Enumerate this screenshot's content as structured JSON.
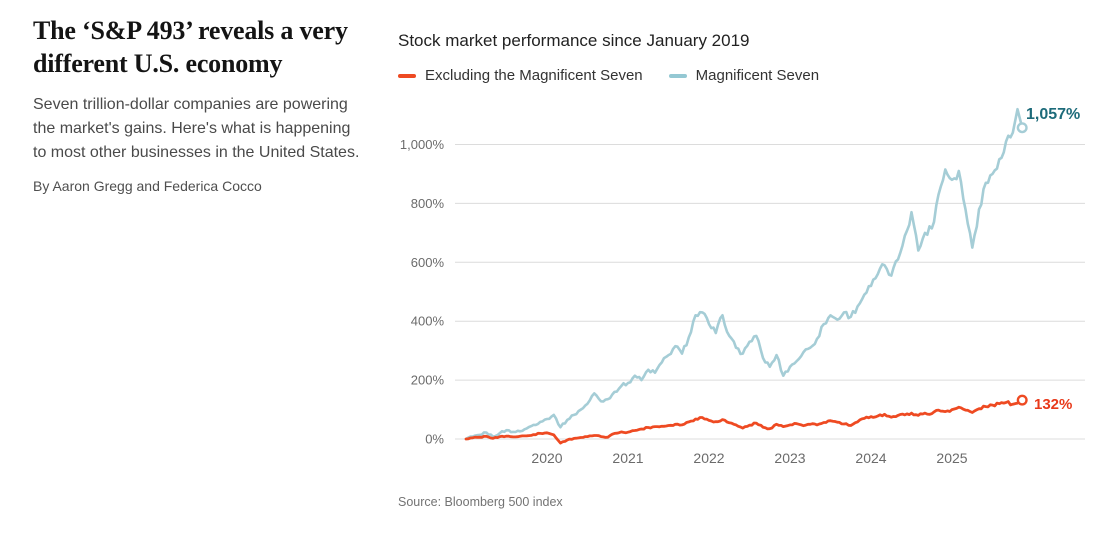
{
  "article": {
    "headline_lines": [
      "The ‘S&P 493’ reveals a very",
      "different U.S. economy"
    ],
    "subtitle_lines": [
      "Seven trillion-dollar companies are powering",
      "the market's gains. Here's what is happening",
      "to most other businesses in the United States."
    ],
    "byline": "By Aaron Gregg and Federica Cocco"
  },
  "chart": {
    "title": "Stock market performance since January 2019",
    "source": "Source: Bloomberg 500 index",
    "legend": [
      {
        "label": "Excluding the Magnificent Seven",
        "color": "#ee4a22"
      },
      {
        "label": "Magnificent Seven",
        "color": "#94c8d3"
      }
    ],
    "series_end_labels": {
      "excluding": "132%",
      "mag7": "1,057%"
    },
    "end_label_colors": {
      "excluding": "#e8391a",
      "mag7": "#1d6b7a"
    }
  },
  "chart_data": {
    "type": "line",
    "title": "Stock market performance since January 2019",
    "x_unit": "months since January 2019",
    "x_tick_years": [
      2020,
      2021,
      2022,
      2023,
      2024,
      2025
    ],
    "y_tick_values": [
      0,
      200,
      400,
      600,
      800,
      1000
    ],
    "y_tick_labels": [
      "0%",
      "200%",
      "400%",
      "600%",
      "800%",
      "1,000%"
    ],
    "ylim": [
      -40,
      1180
    ],
    "grid": "horizontal",
    "legend_position": "top",
    "series": [
      {
        "name": "Magnificent Seven",
        "color": "#a5cdd6",
        "end_value_pct": 1057,
        "end_label": "1,057%",
        "points": [
          [
            0,
            0
          ],
          [
            1,
            8
          ],
          [
            2,
            14
          ],
          [
            3,
            22
          ],
          [
            4,
            8
          ],
          [
            5,
            20
          ],
          [
            6,
            30
          ],
          [
            7,
            24
          ],
          [
            8,
            26
          ],
          [
            9,
            36
          ],
          [
            10,
            48
          ],
          [
            11,
            58
          ],
          [
            12,
            68
          ],
          [
            13,
            82
          ],
          [
            14,
            40
          ],
          [
            15,
            65
          ],
          [
            16,
            82
          ],
          [
            17,
            100
          ],
          [
            18,
            120
          ],
          [
            19,
            155
          ],
          [
            20,
            128
          ],
          [
            21,
            135
          ],
          [
            22,
            160
          ],
          [
            23,
            180
          ],
          [
            24,
            190
          ],
          [
            25,
            215
          ],
          [
            26,
            200
          ],
          [
            27,
            235
          ],
          [
            28,
            225
          ],
          [
            29,
            260
          ],
          [
            30,
            285
          ],
          [
            31,
            315
          ],
          [
            32,
            290
          ],
          [
            33,
            345
          ],
          [
            34,
            420
          ],
          [
            35,
            430
          ],
          [
            36,
            390
          ],
          [
            37,
            360
          ],
          [
            38,
            420
          ],
          [
            39,
            350
          ],
          [
            40,
            310
          ],
          [
            41,
            290
          ],
          [
            42,
            330
          ],
          [
            43,
            350
          ],
          [
            44,
            275
          ],
          [
            45,
            245
          ],
          [
            46,
            285
          ],
          [
            47,
            215
          ],
          [
            48,
            245
          ],
          [
            49,
            265
          ],
          [
            50,
            295
          ],
          [
            51,
            310
          ],
          [
            52,
            340
          ],
          [
            53,
            390
          ],
          [
            54,
            420
          ],
          [
            55,
            405
          ],
          [
            56,
            430
          ],
          [
            57,
            415
          ],
          [
            58,
            450
          ],
          [
            59,
            490
          ],
          [
            60,
            520
          ],
          [
            61,
            560
          ],
          [
            62,
            590
          ],
          [
            63,
            555
          ],
          [
            64,
            610
          ],
          [
            65,
            690
          ],
          [
            66,
            770
          ],
          [
            67,
            640
          ],
          [
            68,
            700
          ],
          [
            69,
            715
          ],
          [
            70,
            830
          ],
          [
            71,
            915
          ],
          [
            72,
            880
          ],
          [
            73,
            910
          ],
          [
            74,
            780
          ],
          [
            75,
            650
          ],
          [
            76,
            780
          ],
          [
            77,
            870
          ],
          [
            78,
            900
          ],
          [
            79,
            950
          ],
          [
            80,
            1010
          ],
          [
            81,
            1040
          ],
          [
            81.7,
            1120
          ],
          [
            82.4,
            1057
          ]
        ]
      },
      {
        "name": "Excluding the Magnificent Seven",
        "color": "#ee4a22",
        "end_value_pct": 132,
        "end_label": "132%",
        "points": [
          [
            0,
            0
          ],
          [
            1,
            4
          ],
          [
            2,
            6
          ],
          [
            3,
            9
          ],
          [
            4,
            2
          ],
          [
            5,
            8
          ],
          [
            6,
            10
          ],
          [
            7,
            7
          ],
          [
            8,
            9
          ],
          [
            9,
            11
          ],
          [
            10,
            15
          ],
          [
            11,
            19
          ],
          [
            12,
            21
          ],
          [
            13,
            14
          ],
          [
            14,
            -14
          ],
          [
            15,
            -3
          ],
          [
            16,
            2
          ],
          [
            17,
            5
          ],
          [
            18,
            8
          ],
          [
            19,
            12
          ],
          [
            20,
            8
          ],
          [
            21,
            6
          ],
          [
            22,
            19
          ],
          [
            23,
            24
          ],
          [
            24,
            23
          ],
          [
            25,
            29
          ],
          [
            26,
            34
          ],
          [
            27,
            39
          ],
          [
            28,
            42
          ],
          [
            29,
            43
          ],
          [
            30,
            46
          ],
          [
            31,
            50
          ],
          [
            32,
            48
          ],
          [
            33,
            58
          ],
          [
            34,
            68
          ],
          [
            35,
            73
          ],
          [
            36,
            63
          ],
          [
            37,
            59
          ],
          [
            38,
            66
          ],
          [
            39,
            55
          ],
          [
            40,
            48
          ],
          [
            41,
            37
          ],
          [
            42,
            47
          ],
          [
            43,
            54
          ],
          [
            44,
            40
          ],
          [
            45,
            35
          ],
          [
            46,
            50
          ],
          [
            47,
            42
          ],
          [
            48,
            48
          ],
          [
            49,
            52
          ],
          [
            50,
            45
          ],
          [
            51,
            50
          ],
          [
            52,
            48
          ],
          [
            53,
            56
          ],
          [
            54,
            62
          ],
          [
            55,
            57
          ],
          [
            56,
            51
          ],
          [
            57,
            46
          ],
          [
            58,
            58
          ],
          [
            59,
            70
          ],
          [
            60,
            76
          ],
          [
            61,
            78
          ],
          [
            62,
            84
          ],
          [
            63,
            74
          ],
          [
            64,
            80
          ],
          [
            65,
            82
          ],
          [
            66,
            88
          ],
          [
            67,
            80
          ],
          [
            68,
            88
          ],
          [
            69,
            86
          ],
          [
            70,
            98
          ],
          [
            71,
            93
          ],
          [
            72,
            100
          ],
          [
            73,
            108
          ],
          [
            74,
            98
          ],
          [
            75,
            90
          ],
          [
            76,
            103
          ],
          [
            77,
            110
          ],
          [
            78,
            115
          ],
          [
            79,
            120
          ],
          [
            80,
            124
          ],
          [
            81,
            118
          ],
          [
            81.7,
            122
          ],
          [
            82.4,
            132
          ]
        ]
      }
    ]
  }
}
